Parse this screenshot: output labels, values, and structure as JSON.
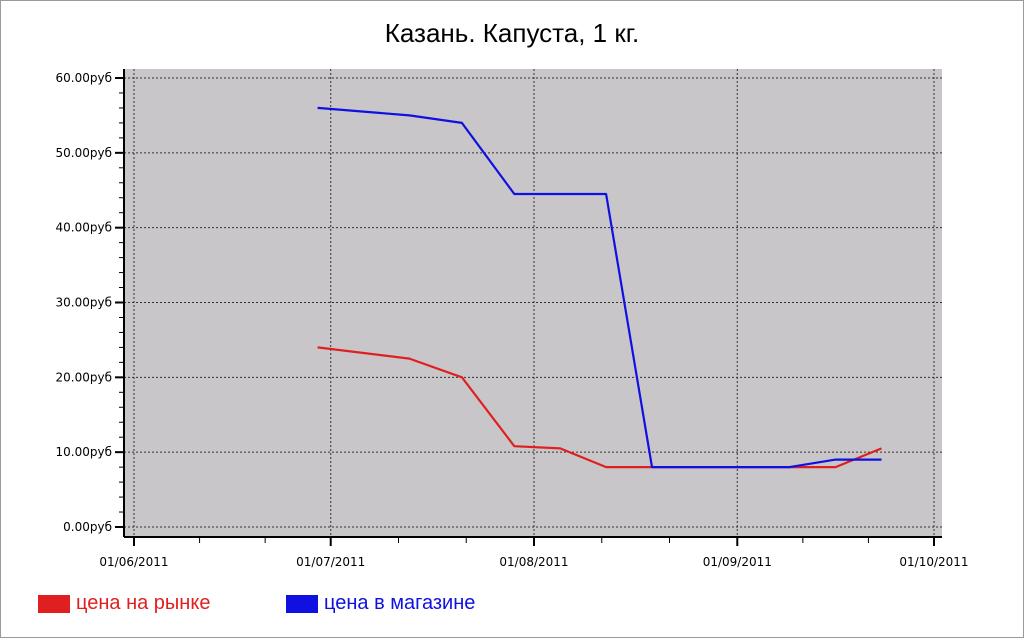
{
  "chart_data": {
    "type": "line",
    "title": "Казань. Капуста, 1 кг.",
    "xlabel": "",
    "ylabel": "",
    "x_ticks": [
      "01/06/2011",
      "01/07/2011",
      "01/08/2011",
      "01/09/2011",
      "01/10/2011"
    ],
    "y_ticks": [
      "0.00руб",
      "10.00руб",
      "20.00руб",
      "30.00руб",
      "40.00руб",
      "50.00руб",
      "60.00руб"
    ],
    "x_range": [
      "2011-06-01",
      "2011-10-01"
    ],
    "ylim": [
      0,
      60
    ],
    "grid": true,
    "legend_position": "bottom-left",
    "plot_background": "#c8c6c8",
    "series": [
      {
        "name": "цена на рынке",
        "color": "#e02020",
        "points": [
          {
            "x": "2011-06-29",
            "y": 24
          },
          {
            "x": "2011-07-13",
            "y": 22.5
          },
          {
            "x": "2011-07-21",
            "y": 20
          },
          {
            "x": "2011-07-29",
            "y": 10.8
          },
          {
            "x": "2011-08-05",
            "y": 10.5
          },
          {
            "x": "2011-08-12",
            "y": 8
          },
          {
            "x": "2011-08-19",
            "y": 8
          },
          {
            "x": "2011-09-02",
            "y": 8
          },
          {
            "x": "2011-09-09",
            "y": 8
          },
          {
            "x": "2011-09-16",
            "y": 8
          },
          {
            "x": "2011-09-23",
            "y": 10.5
          }
        ]
      },
      {
        "name": "цена в магазине",
        "color": "#1010e0",
        "points": [
          {
            "x": "2011-06-29",
            "y": 56
          },
          {
            "x": "2011-07-13",
            "y": 55
          },
          {
            "x": "2011-07-21",
            "y": 54
          },
          {
            "x": "2011-07-29",
            "y": 44.5
          },
          {
            "x": "2011-08-05",
            "y": 44.5
          },
          {
            "x": "2011-08-12",
            "y": 44.5
          },
          {
            "x": "2011-08-19",
            "y": 8
          },
          {
            "x": "2011-09-02",
            "y": 8
          },
          {
            "x": "2011-09-09",
            "y": 8
          },
          {
            "x": "2011-09-16",
            "y": 9
          },
          {
            "x": "2011-09-23",
            "y": 9
          }
        ]
      }
    ]
  }
}
